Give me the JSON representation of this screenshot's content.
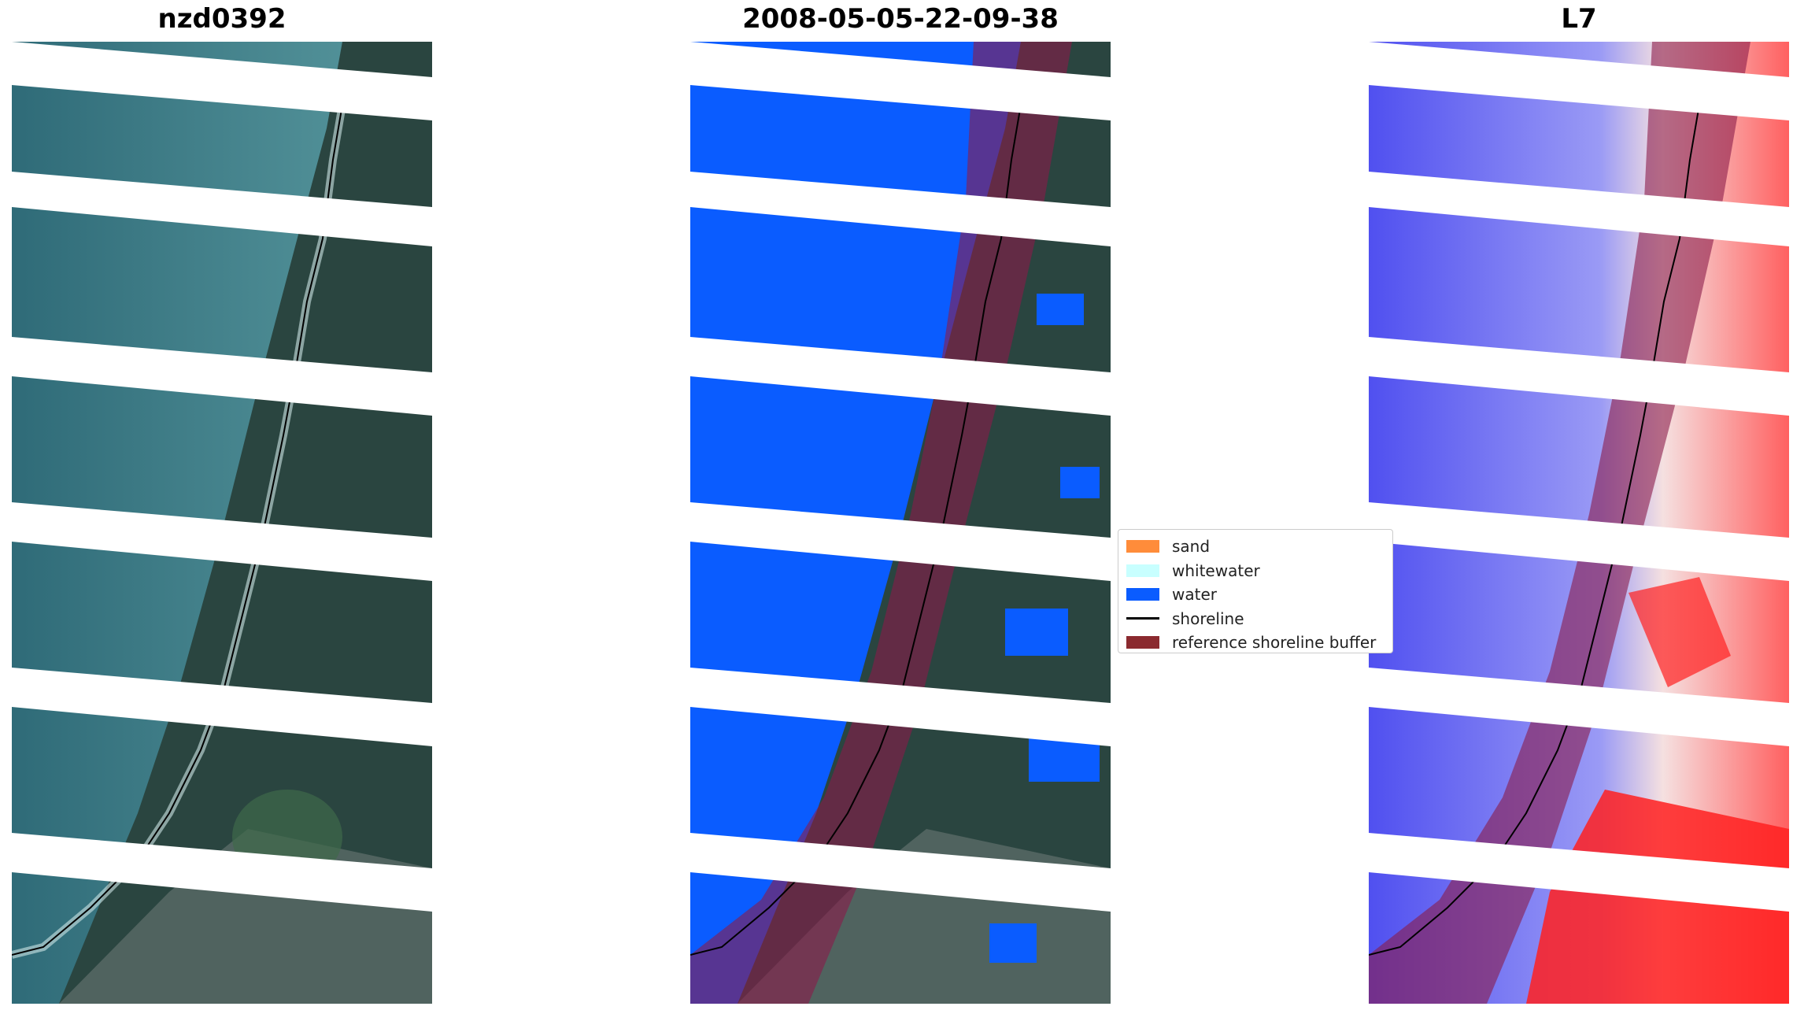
{
  "panels": [
    {
      "title": "nzd0392"
    },
    {
      "title": "2008-05-05-22-09-38"
    },
    {
      "title": "L7"
    }
  ],
  "legend": {
    "items": [
      {
        "label": "sand",
        "color": "#ff8c3a"
      },
      {
        "label": "whitewater",
        "color": "#c8ffff"
      },
      {
        "label": "water",
        "color": "#0a5cff"
      },
      {
        "label": "shoreline",
        "color": "#000000"
      },
      {
        "label": "reference shoreline buffer",
        "color": "#8b2a2f"
      }
    ]
  },
  "colors": {
    "sea": "#3f7b8a",
    "land": "#2a4540",
    "water_class": "#0a5cff",
    "buffer": "#8b1a4a",
    "index_low": "#3a3ae8",
    "index_high": "#ff2020"
  }
}
